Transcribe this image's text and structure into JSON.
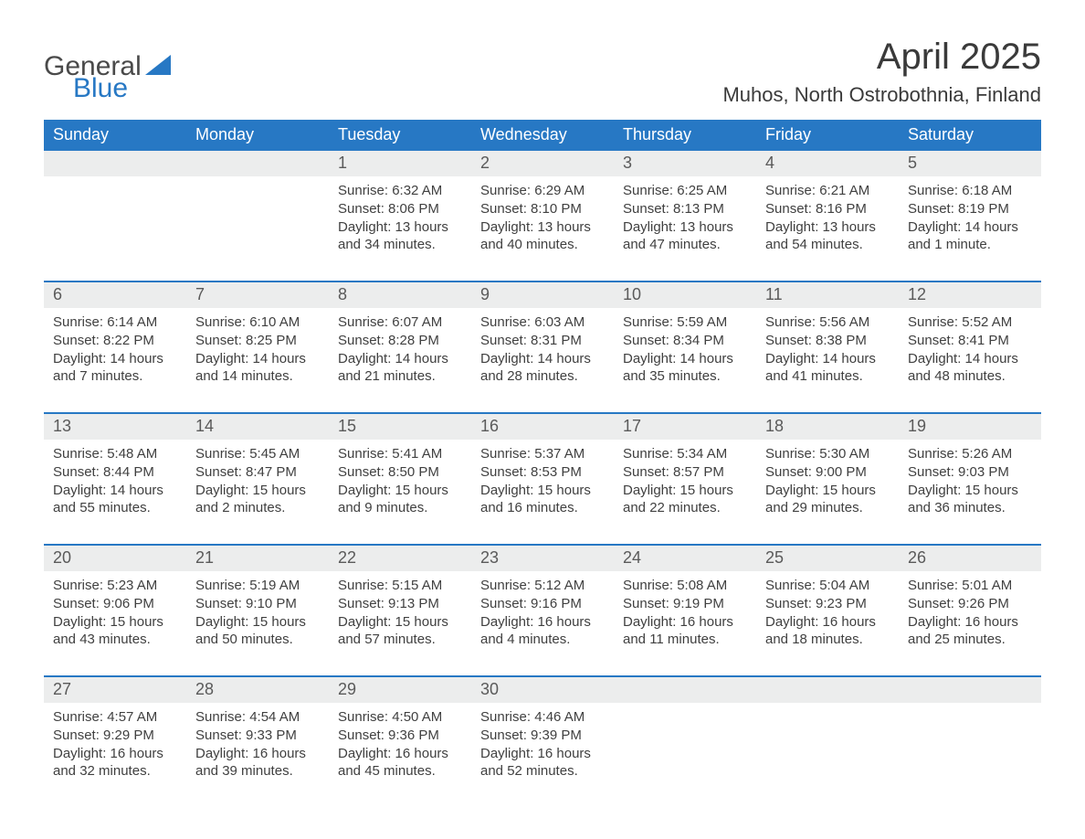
{
  "logo": {
    "word1": "General",
    "word2": "Blue",
    "icon_color": "#2778c4"
  },
  "title": "April 2025",
  "subtitle": "Muhos, North Ostrobothnia, Finland",
  "colors": {
    "header_bg": "#2778c4",
    "header_text": "#ffffff",
    "daynum_bg": "#eceded",
    "text": "#404040",
    "week_divider": "#2778c4",
    "background": "#ffffff"
  },
  "typography": {
    "title_fontsize": 40,
    "subtitle_fontsize": 22,
    "weekday_fontsize": 18,
    "daynum_fontsize": 18,
    "cell_fontsize": 15
  },
  "layout": {
    "columns": 7,
    "rows": 5
  },
  "weekdays": [
    "Sunday",
    "Monday",
    "Tuesday",
    "Wednesday",
    "Thursday",
    "Friday",
    "Saturday"
  ],
  "weeks": [
    [
      null,
      null,
      {
        "day": "1",
        "sunrise": "Sunrise: 6:32 AM",
        "sunset": "Sunset: 8:06 PM",
        "daylight1": "Daylight: 13 hours",
        "daylight2": "and 34 minutes."
      },
      {
        "day": "2",
        "sunrise": "Sunrise: 6:29 AM",
        "sunset": "Sunset: 8:10 PM",
        "daylight1": "Daylight: 13 hours",
        "daylight2": "and 40 minutes."
      },
      {
        "day": "3",
        "sunrise": "Sunrise: 6:25 AM",
        "sunset": "Sunset: 8:13 PM",
        "daylight1": "Daylight: 13 hours",
        "daylight2": "and 47 minutes."
      },
      {
        "day": "4",
        "sunrise": "Sunrise: 6:21 AM",
        "sunset": "Sunset: 8:16 PM",
        "daylight1": "Daylight: 13 hours",
        "daylight2": "and 54 minutes."
      },
      {
        "day": "5",
        "sunrise": "Sunrise: 6:18 AM",
        "sunset": "Sunset: 8:19 PM",
        "daylight1": "Daylight: 14 hours",
        "daylight2": "and 1 minute."
      }
    ],
    [
      {
        "day": "6",
        "sunrise": "Sunrise: 6:14 AM",
        "sunset": "Sunset: 8:22 PM",
        "daylight1": "Daylight: 14 hours",
        "daylight2": "and 7 minutes."
      },
      {
        "day": "7",
        "sunrise": "Sunrise: 6:10 AM",
        "sunset": "Sunset: 8:25 PM",
        "daylight1": "Daylight: 14 hours",
        "daylight2": "and 14 minutes."
      },
      {
        "day": "8",
        "sunrise": "Sunrise: 6:07 AM",
        "sunset": "Sunset: 8:28 PM",
        "daylight1": "Daylight: 14 hours",
        "daylight2": "and 21 minutes."
      },
      {
        "day": "9",
        "sunrise": "Sunrise: 6:03 AM",
        "sunset": "Sunset: 8:31 PM",
        "daylight1": "Daylight: 14 hours",
        "daylight2": "and 28 minutes."
      },
      {
        "day": "10",
        "sunrise": "Sunrise: 5:59 AM",
        "sunset": "Sunset: 8:34 PM",
        "daylight1": "Daylight: 14 hours",
        "daylight2": "and 35 minutes."
      },
      {
        "day": "11",
        "sunrise": "Sunrise: 5:56 AM",
        "sunset": "Sunset: 8:38 PM",
        "daylight1": "Daylight: 14 hours",
        "daylight2": "and 41 minutes."
      },
      {
        "day": "12",
        "sunrise": "Sunrise: 5:52 AM",
        "sunset": "Sunset: 8:41 PM",
        "daylight1": "Daylight: 14 hours",
        "daylight2": "and 48 minutes."
      }
    ],
    [
      {
        "day": "13",
        "sunrise": "Sunrise: 5:48 AM",
        "sunset": "Sunset: 8:44 PM",
        "daylight1": "Daylight: 14 hours",
        "daylight2": "and 55 minutes."
      },
      {
        "day": "14",
        "sunrise": "Sunrise: 5:45 AM",
        "sunset": "Sunset: 8:47 PM",
        "daylight1": "Daylight: 15 hours",
        "daylight2": "and 2 minutes."
      },
      {
        "day": "15",
        "sunrise": "Sunrise: 5:41 AM",
        "sunset": "Sunset: 8:50 PM",
        "daylight1": "Daylight: 15 hours",
        "daylight2": "and 9 minutes."
      },
      {
        "day": "16",
        "sunrise": "Sunrise: 5:37 AM",
        "sunset": "Sunset: 8:53 PM",
        "daylight1": "Daylight: 15 hours",
        "daylight2": "and 16 minutes."
      },
      {
        "day": "17",
        "sunrise": "Sunrise: 5:34 AM",
        "sunset": "Sunset: 8:57 PM",
        "daylight1": "Daylight: 15 hours",
        "daylight2": "and 22 minutes."
      },
      {
        "day": "18",
        "sunrise": "Sunrise: 5:30 AM",
        "sunset": "Sunset: 9:00 PM",
        "daylight1": "Daylight: 15 hours",
        "daylight2": "and 29 minutes."
      },
      {
        "day": "19",
        "sunrise": "Sunrise: 5:26 AM",
        "sunset": "Sunset: 9:03 PM",
        "daylight1": "Daylight: 15 hours",
        "daylight2": "and 36 minutes."
      }
    ],
    [
      {
        "day": "20",
        "sunrise": "Sunrise: 5:23 AM",
        "sunset": "Sunset: 9:06 PM",
        "daylight1": "Daylight: 15 hours",
        "daylight2": "and 43 minutes."
      },
      {
        "day": "21",
        "sunrise": "Sunrise: 5:19 AM",
        "sunset": "Sunset: 9:10 PM",
        "daylight1": "Daylight: 15 hours",
        "daylight2": "and 50 minutes."
      },
      {
        "day": "22",
        "sunrise": "Sunrise: 5:15 AM",
        "sunset": "Sunset: 9:13 PM",
        "daylight1": "Daylight: 15 hours",
        "daylight2": "and 57 minutes."
      },
      {
        "day": "23",
        "sunrise": "Sunrise: 5:12 AM",
        "sunset": "Sunset: 9:16 PM",
        "daylight1": "Daylight: 16 hours",
        "daylight2": "and 4 minutes."
      },
      {
        "day": "24",
        "sunrise": "Sunrise: 5:08 AM",
        "sunset": "Sunset: 9:19 PM",
        "daylight1": "Daylight: 16 hours",
        "daylight2": "and 11 minutes."
      },
      {
        "day": "25",
        "sunrise": "Sunrise: 5:04 AM",
        "sunset": "Sunset: 9:23 PM",
        "daylight1": "Daylight: 16 hours",
        "daylight2": "and 18 minutes."
      },
      {
        "day": "26",
        "sunrise": "Sunrise: 5:01 AM",
        "sunset": "Sunset: 9:26 PM",
        "daylight1": "Daylight: 16 hours",
        "daylight2": "and 25 minutes."
      }
    ],
    [
      {
        "day": "27",
        "sunrise": "Sunrise: 4:57 AM",
        "sunset": "Sunset: 9:29 PM",
        "daylight1": "Daylight: 16 hours",
        "daylight2": "and 32 minutes."
      },
      {
        "day": "28",
        "sunrise": "Sunrise: 4:54 AM",
        "sunset": "Sunset: 9:33 PM",
        "daylight1": "Daylight: 16 hours",
        "daylight2": "and 39 minutes."
      },
      {
        "day": "29",
        "sunrise": "Sunrise: 4:50 AM",
        "sunset": "Sunset: 9:36 PM",
        "daylight1": "Daylight: 16 hours",
        "daylight2": "and 45 minutes."
      },
      {
        "day": "30",
        "sunrise": "Sunrise: 4:46 AM",
        "sunset": "Sunset: 9:39 PM",
        "daylight1": "Daylight: 16 hours",
        "daylight2": "and 52 minutes."
      },
      null,
      null,
      null
    ]
  ]
}
